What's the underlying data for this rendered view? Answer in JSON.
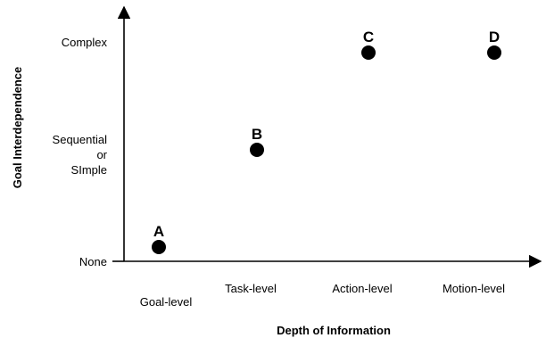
{
  "chart_data": {
    "type": "scatter",
    "xlabel": "Depth of Information",
    "ylabel": "Goal Interdependence",
    "x_ticks": [
      "Goal-level",
      "Task-level",
      "Action-level",
      "Motion-level"
    ],
    "y_ticks": [
      "None",
      "Sequential or SImple",
      "Complex"
    ],
    "y_tick_lines": {
      "none": "None",
      "sequential": [
        "Sequential",
        "or",
        "SImple"
      ],
      "complex": "Complex"
    },
    "points": [
      {
        "label": "A",
        "x": "Goal-level",
        "y": "None"
      },
      {
        "label": "B",
        "x": "Task-level",
        "y": "Sequential or SImple"
      },
      {
        "label": "C",
        "x": "Action-level",
        "y": "Complex"
      },
      {
        "label": "D",
        "x": "Motion-level",
        "y": "Complex"
      }
    ],
    "grid": false,
    "legend": "none"
  }
}
